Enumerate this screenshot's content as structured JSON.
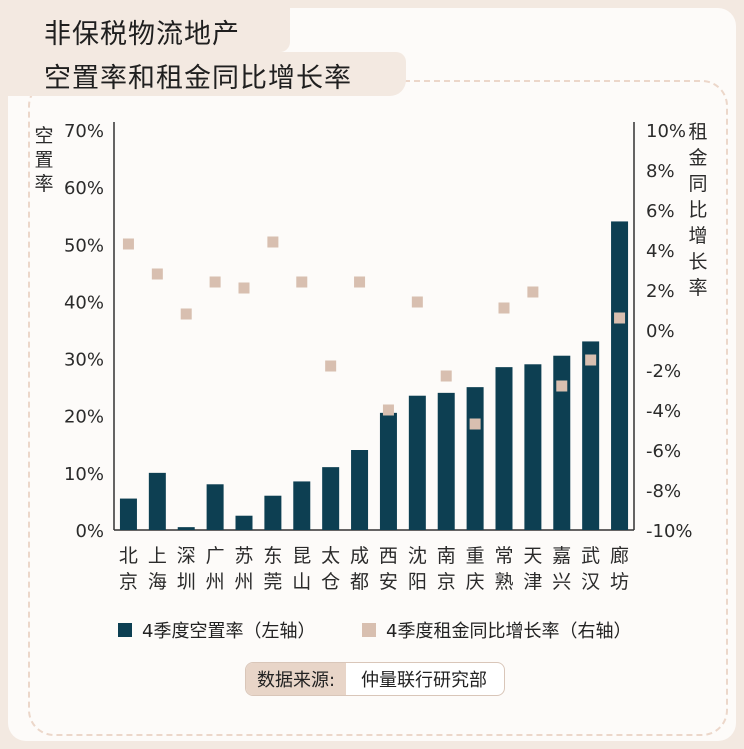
{
  "title": {
    "line1": "非保税物流地产",
    "line2": "空置率和租金同比增长率"
  },
  "chart_data": {
    "type": "bar",
    "categories": [
      "北京",
      "上海",
      "深圳",
      "广州",
      "苏州",
      "东莞",
      "昆山",
      "太仓",
      "成都",
      "西安",
      "沈阳",
      "南京",
      "重庆",
      "常熟",
      "天津",
      "嘉兴",
      "武汉",
      "廊坊"
    ],
    "series": [
      {
        "name": "4季度空置率（左轴）",
        "type": "bar",
        "axis": "left",
        "values": [
          5.5,
          10.0,
          0.5,
          8.0,
          2.5,
          6.0,
          8.5,
          11.0,
          14.0,
          20.5,
          23.5,
          24.0,
          25.0,
          28.5,
          29.0,
          30.5,
          33.0,
          54.0
        ]
      },
      {
        "name": "4季度租金同比增长率（右轴）",
        "type": "scatter",
        "axis": "right",
        "values": [
          4.3,
          2.8,
          0.8,
          2.4,
          2.1,
          4.4,
          2.4,
          -1.8,
          2.4,
          -4.0,
          1.4,
          -2.3,
          -4.7,
          1.1,
          1.9,
          -2.8,
          -1.5,
          0.6
        ]
      }
    ],
    "ylabel_left": "空置率",
    "ylabel_right": "租金同比增长率",
    "ylim_left": [
      0,
      70
    ],
    "yticks_left": [
      "0%",
      "10%",
      "20%",
      "30%",
      "40%",
      "50%",
      "60%",
      "70%"
    ],
    "ylim_right": [
      -10,
      10
    ],
    "yticks_right": [
      "-10%",
      "-8%",
      "-6%",
      "-4%",
      "-2%",
      "0%",
      "2%",
      "4%",
      "6%",
      "8%",
      "10%"
    ],
    "grid": false,
    "legend_position": "bottom",
    "colors": {
      "bar": "#0d3f52",
      "marker": "#d8bfb0"
    }
  },
  "legend": {
    "bar_label": "4季度空置率（左轴）",
    "marker_label": "4季度租金同比增长率（右轴）"
  },
  "source": {
    "label": "数据来源:",
    "value": "仲量联行研究部"
  }
}
